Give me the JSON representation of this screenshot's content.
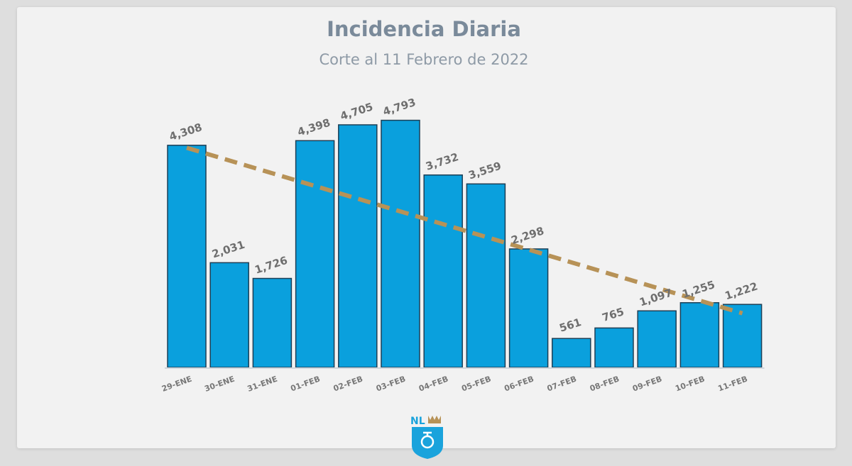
{
  "chart_data": {
    "type": "bar",
    "title": "Incidencia Diaria",
    "subtitle": "Corte al 11 Febrero de 2022",
    "categories": [
      "29-ENE",
      "30-ENE",
      "31-ENE",
      "01-FEB",
      "02-FEB",
      "03-FEB",
      "04-FEB",
      "05-FEB",
      "06-FEB",
      "07-FEB",
      "08-FEB",
      "09-FEB",
      "10-FEB",
      "11-FEB"
    ],
    "values": [
      4308,
      2031,
      1726,
      4398,
      4705,
      4793,
      3732,
      3559,
      2298,
      561,
      765,
      1097,
      1255,
      1222
    ],
    "value_labels": [
      "4,308",
      "2,031",
      "1,726",
      "4,398",
      "4,705",
      "4,793",
      "3,732",
      "3,559",
      "2,298",
      "561",
      "765",
      "1,097",
      "1,255",
      "1,222"
    ],
    "trendline": {
      "type": "linear",
      "start": 4260,
      "end": 1050
    },
    "ylim": [
      0,
      5200
    ],
    "grid": false,
    "legend": "none",
    "colors": {
      "bar": "#0aa0dd",
      "bar_border": "#1d3f56",
      "trend": "#b79257",
      "title": "#7a8a9a"
    }
  },
  "logo": {
    "text": "NL",
    "icon": "nuevo-leon-shield-logo"
  }
}
